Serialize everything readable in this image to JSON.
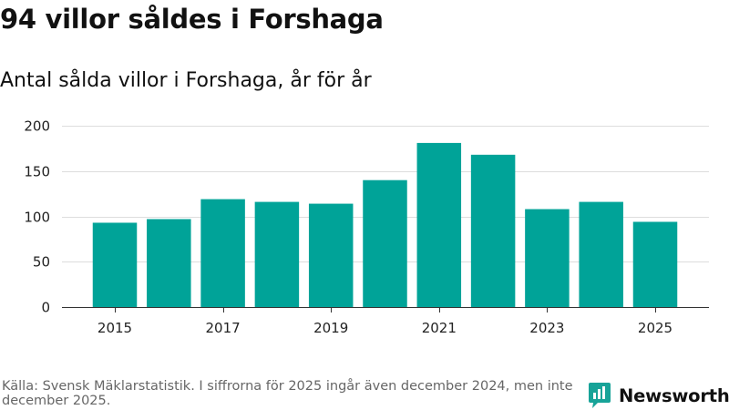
{
  "header": {
    "title": "94 villor såldes i Forshaga",
    "subtitle": "Antal sålda villor i Forshaga, år för år"
  },
  "footer": {
    "source": "Källa: Svensk Mäklarstatistik. I siffrorna för 2025 ingår även december 2024, men inte december 2025.",
    "brand": "Newsworthy",
    "brand_icon": "bar-chart-logo-icon",
    "brand_color": "#17a398"
  },
  "chart_data": {
    "type": "bar",
    "categories": [
      "2015",
      "2016",
      "2017",
      "2018",
      "2019",
      "2020",
      "2021",
      "2022",
      "2023",
      "2024",
      "2025"
    ],
    "values": [
      93,
      97,
      119,
      116,
      114,
      140,
      181,
      168,
      108,
      116,
      94
    ],
    "x_tick_labels": [
      "2015",
      "2017",
      "2019",
      "2021",
      "2023",
      "2025"
    ],
    "y_ticks": [
      0,
      50,
      100,
      150,
      200
    ],
    "ylim": [
      0,
      200
    ],
    "title": "94 villor såldes i Forshaga",
    "subtitle": "Antal sålda villor i Forshaga, år för år",
    "xlabel": "",
    "ylabel": "",
    "grid": true,
    "bar_color": "#00a398",
    "grid_color": "#dddddd",
    "axis_color": "#333333"
  }
}
